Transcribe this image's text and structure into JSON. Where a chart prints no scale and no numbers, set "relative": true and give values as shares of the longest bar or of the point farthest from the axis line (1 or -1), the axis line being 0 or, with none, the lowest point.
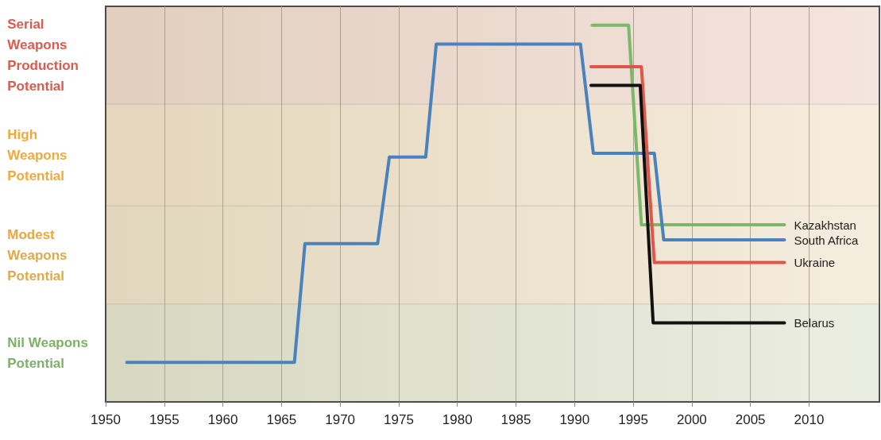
{
  "chart_data": {
    "type": "line",
    "relative": true,
    "xlim": [
      1950,
      2016
    ],
    "xticks": [
      1950,
      1955,
      1960,
      1965,
      1970,
      1975,
      1980,
      1985,
      1990,
      1995,
      2000,
      2005,
      2010
    ],
    "grid": "x",
    "legend": false,
    "marker": "none",
    "line_style": "solid",
    "bands": [
      {
        "axis": "y",
        "from": 0,
        "to": 0.26,
        "label": "Nil Weapons Potential",
        "color": "#7fb069"
      },
      {
        "axis": "y",
        "from": 0.26,
        "to": 0.52,
        "label": "Modest Weapons Potential",
        "color": "#e5a845"
      },
      {
        "axis": "y",
        "from": 0.52,
        "to": 0.79,
        "label": "High Weapons Potential",
        "color": "#f2a93b"
      },
      {
        "axis": "y",
        "from": 0.79,
        "to": 1.05,
        "label": "Serial Weapons Production Potential",
        "color": "#dd5a4e"
      }
    ],
    "series": [
      {
        "name": "Kazakhstan",
        "color": "#7cb86a",
        "x": [
          1991.5,
          1994.6,
          1995.7,
          2007.9
        ],
        "values": [
          1,
          1,
          0.47,
          0.47
        ]
      },
      {
        "name": "South Africa",
        "color": "#4a82bd",
        "x": [
          1951.8,
          1966.1,
          1967.0,
          1973.2,
          1974.2,
          1977.3,
          1978.2,
          1990.5,
          1991.6,
          1996.8,
          1997.6,
          2007.9
        ],
        "values": [
          0.105,
          0.105,
          0.42,
          0.42,
          0.65,
          0.65,
          0.95,
          0.95,
          0.66,
          0.66,
          0.43,
          0.43
        ]
      },
      {
        "name": "Ukraine",
        "color": "#e0554a",
        "x": [
          1991.4,
          1995.7,
          1996.8,
          2007.9
        ],
        "values": [
          0.89,
          0.89,
          0.37,
          0.37
        ]
      },
      {
        "name": "Belarus",
        "color": "#111111",
        "x": [
          1991.4,
          1995.6,
          1996.7,
          2007.9
        ],
        "values": [
          0.84,
          0.84,
          0.21,
          0.21
        ]
      }
    ]
  }
}
